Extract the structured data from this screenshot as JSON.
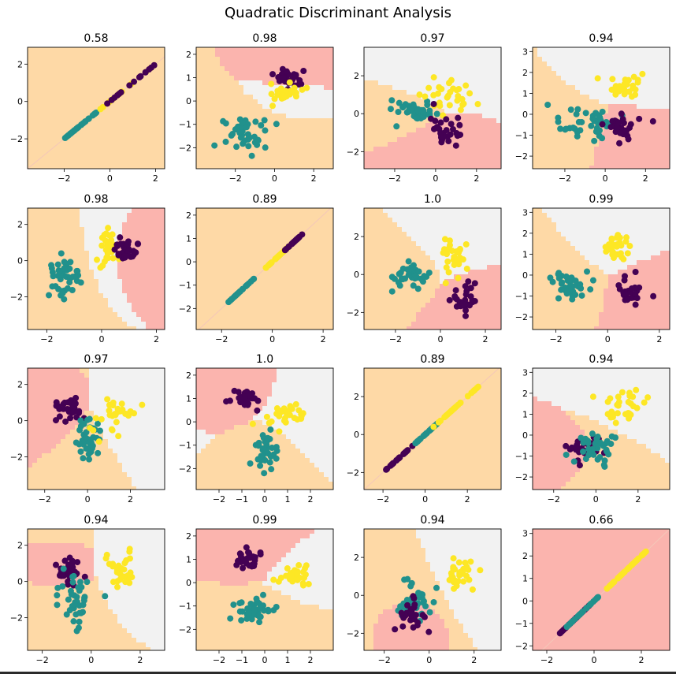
{
  "figure": {
    "title": "Quadratic Discriminant Analysis"
  },
  "colors": {
    "purple": "#440154",
    "teal": "#21918c",
    "yellow": "#fde725",
    "region_red": "#fbb4ae",
    "region_orange": "#fed9a6",
    "region_gray": "#f2f2f2"
  },
  "chart_data": [
    {
      "type": "scatter",
      "title": "0.58",
      "xlim": [
        -3.6,
        2.4
      ],
      "ylim": [
        -3.6,
        2.9
      ],
      "xticks": [
        -2,
        0,
        2
      ],
      "yticks": [
        -2,
        0,
        2
      ],
      "regions": "mixed",
      "kind": "line",
      "slope": 1,
      "intercept": 0,
      "line_span": [
        -3,
        2
      ],
      "groups": [
        {
          "color": "teal",
          "t": [
            -2,
            -0.5
          ],
          "n": 30
        },
        {
          "color": "yellow",
          "t": [
            -0.5,
            1.8
          ],
          "n": 18
        },
        {
          "color": "purple",
          "t": [
            -0.3,
            2
          ],
          "n": 16
        }
      ]
    },
    {
      "type": "scatter",
      "title": "0.98",
      "xlim": [
        -4,
        3
      ],
      "ylim": [
        -2.9,
        2.3
      ],
      "xticks": [
        -2,
        0,
        2
      ],
      "yticks": [
        -2,
        -1,
        0,
        1,
        2
      ],
      "regions": "curved",
      "kind": "blobs",
      "groups": [
        {
          "color": "teal",
          "cx": -1.3,
          "cy": -1.3,
          "sx": 0.6,
          "sy": 0.35,
          "n": 40
        },
        {
          "color": "purple",
          "cx": 0.7,
          "cy": 1.0,
          "sx": 0.4,
          "sy": 0.25,
          "n": 30
        },
        {
          "color": "yellow",
          "cx": 0.6,
          "cy": 0.4,
          "sx": 0.4,
          "sy": 0.25,
          "n": 30
        }
      ]
    },
    {
      "type": "scatter",
      "title": "0.97",
      "xlim": [
        -3.5,
        3.2
      ],
      "ylim": [
        -2.9,
        3.5
      ],
      "xticks": [
        -2,
        0,
        2
      ],
      "yticks": [
        -2,
        0,
        2
      ],
      "regions": "curved",
      "kind": "blobs",
      "groups": [
        {
          "color": "teal",
          "cx": -1.0,
          "cy": 0.1,
          "sx": 0.6,
          "sy": 0.3,
          "n": 40
        },
        {
          "color": "yellow",
          "cx": 0.5,
          "cy": 1.0,
          "sx": 0.6,
          "sy": 0.5,
          "n": 30
        },
        {
          "color": "purple",
          "cx": 0.5,
          "cy": -0.9,
          "sx": 0.5,
          "sy": 0.45,
          "n": 30
        }
      ]
    },
    {
      "type": "scatter",
      "title": "0.94",
      "xlim": [
        -3.6,
        3.2
      ],
      "ylim": [
        -2.6,
        3.2
      ],
      "xticks": [
        -2,
        0,
        2
      ],
      "yticks": [
        -2,
        -1,
        0,
        1,
        2,
        3
      ],
      "regions": "curved",
      "kind": "blobs",
      "groups": [
        {
          "color": "teal",
          "cx": -1.0,
          "cy": -0.4,
          "sx": 0.7,
          "sy": 0.35,
          "n": 40
        },
        {
          "color": "purple",
          "cx": 0.8,
          "cy": -0.6,
          "sx": 0.5,
          "sy": 0.35,
          "n": 30
        },
        {
          "color": "yellow",
          "cx": 1.0,
          "cy": 1.3,
          "sx": 0.5,
          "sy": 0.3,
          "n": 30
        }
      ]
    },
    {
      "type": "scatter",
      "title": "0.98",
      "xlim": [
        -2.7,
        2.3
      ],
      "ylim": [
        -3.8,
        2.9
      ],
      "xticks": [
        -2,
        0,
        2
      ],
      "yticks": [
        -2,
        0,
        2
      ],
      "regions": "curved",
      "kind": "blobs",
      "groups": [
        {
          "color": "teal",
          "cx": -1.4,
          "cy": -1.0,
          "sx": 0.3,
          "sy": 0.6,
          "n": 40
        },
        {
          "color": "yellow",
          "cx": 0.3,
          "cy": 0.7,
          "sx": 0.2,
          "sy": 0.5,
          "n": 30
        },
        {
          "color": "purple",
          "cx": 0.9,
          "cy": 0.5,
          "sx": 0.2,
          "sy": 0.4,
          "n": 30
        }
      ]
    },
    {
      "type": "scatter",
      "title": "0.89",
      "xlim": [
        -3,
        2.4
      ],
      "ylim": [
        -2.9,
        2.3
      ],
      "xticks": [
        -2,
        0,
        2
      ],
      "yticks": [
        -2,
        -1,
        0,
        1,
        2
      ],
      "regions": "mixed",
      "kind": "line",
      "slope": 1,
      "intercept": 0,
      "line_span": [
        -1.8,
        1.3
      ],
      "groups": [
        {
          "color": "teal",
          "t": [
            -1.8,
            -0.7
          ],
          "n": 30
        },
        {
          "color": "yellow",
          "t": [
            -0.3,
            0.7
          ],
          "n": 30
        },
        {
          "color": "purple",
          "t": [
            0.5,
            1.3
          ],
          "n": 30
        }
      ]
    },
    {
      "type": "scatter",
      "title": "1.0",
      "xlim": [
        -3.4,
        2.7
      ],
      "ylim": [
        -2.9,
        3.5
      ],
      "xticks": [
        -2,
        0,
        2
      ],
      "yticks": [
        -2,
        0,
        2
      ],
      "regions": "curved",
      "kind": "blobs",
      "groups": [
        {
          "color": "teal",
          "cx": -1.3,
          "cy": 0.0,
          "sx": 0.4,
          "sy": 0.3,
          "n": 40
        },
        {
          "color": "yellow",
          "cx": 0.6,
          "cy": 1.1,
          "sx": 0.3,
          "sy": 0.5,
          "n": 30
        },
        {
          "color": "purple",
          "cx": 1.0,
          "cy": -1.1,
          "sx": 0.3,
          "sy": 0.4,
          "n": 30
        }
      ]
    },
    {
      "type": "scatter",
      "title": "0.99",
      "xlim": [
        -2.9,
        2.4
      ],
      "ylim": [
        -2.6,
        3.2
      ],
      "xticks": [
        -2,
        0,
        2
      ],
      "yticks": [
        -2,
        -1,
        0,
        1,
        2,
        3
      ],
      "regions": "curved",
      "kind": "blobs",
      "groups": [
        {
          "color": "teal",
          "cx": -1.4,
          "cy": -0.5,
          "sx": 0.35,
          "sy": 0.3,
          "n": 40
        },
        {
          "color": "yellow",
          "cx": 0.3,
          "cy": 1.4,
          "sx": 0.25,
          "sy": 0.35,
          "n": 30
        },
        {
          "color": "purple",
          "cx": 0.9,
          "cy": -0.8,
          "sx": 0.25,
          "sy": 0.35,
          "n": 30
        }
      ]
    },
    {
      "type": "scatter",
      "title": "0.97",
      "xlim": [
        -2.8,
        3.6
      ],
      "ylim": [
        -3.8,
        2.9
      ],
      "xticks": [
        -2,
        0,
        2
      ],
      "yticks": [
        -2,
        0,
        2
      ],
      "regions": "curved",
      "kind": "blobs",
      "groups": [
        {
          "color": "purple",
          "cx": -0.9,
          "cy": 0.6,
          "sx": 0.35,
          "sy": 0.4,
          "n": 30
        },
        {
          "color": "teal",
          "cx": 0.0,
          "cy": -1.0,
          "sx": 0.3,
          "sy": 0.7,
          "n": 40
        },
        {
          "color": "yellow",
          "cx": 1.1,
          "cy": 0.3,
          "sx": 0.45,
          "sy": 0.5,
          "n": 30
        }
      ]
    },
    {
      "type": "scatter",
      "title": "1.0",
      "xlim": [
        -3,
        3
      ],
      "ylim": [
        -2.9,
        2.3
      ],
      "xticks": [
        -2,
        -1,
        0,
        1,
        2
      ],
      "yticks": [
        -2,
        -1,
        0,
        1,
        2
      ],
      "regions": "curved",
      "kind": "blobs",
      "groups": [
        {
          "color": "purple",
          "cx": -0.9,
          "cy": 1.0,
          "sx": 0.3,
          "sy": 0.25,
          "n": 30
        },
        {
          "color": "yellow",
          "cx": 1.1,
          "cy": 0.3,
          "sx": 0.5,
          "sy": 0.3,
          "n": 30
        },
        {
          "color": "teal",
          "cx": 0.0,
          "cy": -1.2,
          "sx": 0.3,
          "sy": 0.4,
          "n": 40
        }
      ]
    },
    {
      "type": "scatter",
      "title": "0.89",
      "xlim": [
        -2.9,
        3.6
      ],
      "ylim": [
        -2.9,
        3.5
      ],
      "xticks": [
        -2,
        0,
        2
      ],
      "yticks": [
        -2,
        0,
        2
      ],
      "regions": "mixed",
      "kind": "line",
      "slope": 1,
      "intercept": 0,
      "line_span": [
        -1.9,
        2.6
      ],
      "groups": [
        {
          "color": "purple",
          "t": [
            -1.9,
            -0.5
          ],
          "n": 30
        },
        {
          "color": "teal",
          "t": [
            -0.5,
            0.6
          ],
          "n": 35
        },
        {
          "color": "yellow",
          "t": [
            0.4,
            2.6
          ],
          "n": 30
        }
      ]
    },
    {
      "type": "scatter",
      "title": "0.94",
      "xlim": [
        -3,
        3.5
      ],
      "ylim": [
        -2.6,
        3.2
      ],
      "xticks": [
        -2,
        0,
        2
      ],
      "yticks": [
        -2,
        -1,
        0,
        1,
        2,
        3
      ],
      "regions": "curved",
      "kind": "blobs",
      "groups": [
        {
          "color": "purple",
          "cx": -0.7,
          "cy": -0.6,
          "sx": 0.45,
          "sy": 0.3,
          "n": 30
        },
        {
          "color": "teal",
          "cx": -0.1,
          "cy": -0.6,
          "sx": 0.4,
          "sy": 0.35,
          "n": 40
        },
        {
          "color": "yellow",
          "cx": 1.3,
          "cy": 1.4,
          "sx": 0.45,
          "sy": 0.35,
          "n": 30
        }
      ]
    },
    {
      "type": "scatter",
      "title": "0.94",
      "xlim": [
        -2.6,
        3.0
      ],
      "ylim": [
        -3.8,
        2.9
      ],
      "xticks": [
        -2,
        0,
        2
      ],
      "yticks": [
        -2,
        0,
        2
      ],
      "regions": "curved",
      "kind": "blobs",
      "groups": [
        {
          "color": "purple",
          "cx": -0.9,
          "cy": 0.6,
          "sx": 0.3,
          "sy": 0.35,
          "n": 30
        },
        {
          "color": "teal",
          "cx": -0.7,
          "cy": -0.9,
          "sx": 0.35,
          "sy": 0.8,
          "n": 40
        },
        {
          "color": "yellow",
          "cx": 1.2,
          "cy": 0.7,
          "sx": 0.3,
          "sy": 0.5,
          "n": 30
        }
      ]
    },
    {
      "type": "scatter",
      "title": "0.99",
      "xlim": [
        -3,
        3
      ],
      "ylim": [
        -2.9,
        2.3
      ],
      "xticks": [
        -2,
        -1,
        0,
        1,
        2
      ],
      "yticks": [
        -2,
        -1,
        0,
        1,
        2
      ],
      "regions": "curved",
      "kind": "blobs",
      "groups": [
        {
          "color": "purple",
          "cx": -0.7,
          "cy": 1.0,
          "sx": 0.35,
          "sy": 0.25,
          "n": 30
        },
        {
          "color": "yellow",
          "cx": 1.4,
          "cy": 0.3,
          "sx": 0.35,
          "sy": 0.2,
          "n": 30
        },
        {
          "color": "teal",
          "cx": -0.5,
          "cy": -1.2,
          "sx": 0.4,
          "sy": 0.3,
          "n": 40
        }
      ]
    },
    {
      "type": "scatter",
      "title": "0.94",
      "xlim": [
        -2.9,
        3.2
      ],
      "ylim": [
        -2.9,
        3.5
      ],
      "xticks": [
        -2,
        0,
        2
      ],
      "yticks": [
        -2,
        0,
        2
      ],
      "regions": "curved",
      "kind": "blobs",
      "groups": [
        {
          "color": "teal",
          "cx": -0.6,
          "cy": -0.2,
          "sx": 0.45,
          "sy": 0.5,
          "n": 40
        },
        {
          "color": "purple",
          "cx": -0.7,
          "cy": -1.0,
          "sx": 0.35,
          "sy": 0.4,
          "n": 30
        },
        {
          "color": "yellow",
          "cx": 1.4,
          "cy": 1.1,
          "sx": 0.35,
          "sy": 0.5,
          "n": 30
        }
      ]
    },
    {
      "type": "scatter",
      "title": "0.66",
      "xlim": [
        -2.6,
        3.2
      ],
      "ylim": [
        -2.2,
        3.2
      ],
      "xticks": [
        -2,
        0,
        2
      ],
      "yticks": [
        -2,
        -1,
        0,
        1,
        2,
        3
      ],
      "regions": "all-red",
      "kind": "line",
      "slope": 1,
      "intercept": 0,
      "line_span": [
        -1.6,
        2.2
      ],
      "groups": [
        {
          "color": "purple",
          "t": [
            -1.6,
            -0.2
          ],
          "n": 25
        },
        {
          "color": "teal",
          "t": [
            -1.2,
            0.3
          ],
          "n": 30
        },
        {
          "color": "yellow",
          "t": [
            0.5,
            2.2
          ],
          "n": 35
        }
      ]
    }
  ]
}
